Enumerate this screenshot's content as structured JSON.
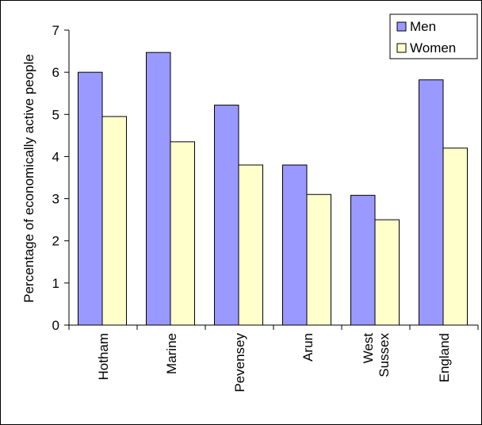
{
  "chart_data": {
    "type": "bar",
    "title": "",
    "xlabel": "",
    "ylabel": "Percentage of economically active people",
    "categories": [
      [
        "Hotham"
      ],
      [
        "Marine"
      ],
      [
        "Pevensey"
      ],
      [
        "Arun"
      ],
      [
        "West",
        "Sussex"
      ],
      [
        "England"
      ]
    ],
    "series": [
      {
        "name": "Men",
        "color": "#9999ff",
        "values": [
          6.0,
          6.47,
          5.22,
          3.8,
          3.08,
          5.82
        ]
      },
      {
        "name": "Women",
        "color": "#ffffcc",
        "values": [
          4.95,
          4.35,
          3.8,
          3.1,
          2.5,
          4.2
        ]
      }
    ],
    "ylim": [
      0,
      7
    ],
    "yticks": [
      0,
      1,
      2,
      3,
      4,
      5,
      6,
      7
    ],
    "grid": false,
    "legend_position": "top-right"
  }
}
